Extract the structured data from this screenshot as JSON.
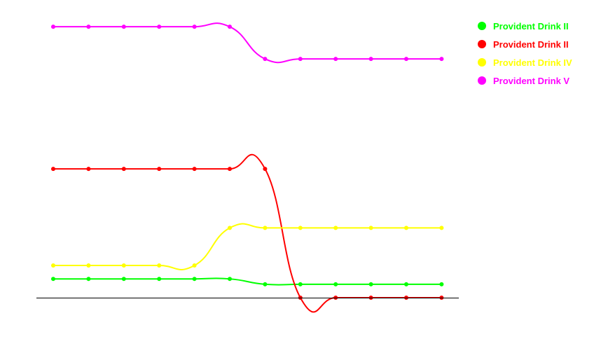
{
  "chart_data": {
    "type": "line",
    "title": "",
    "xlabel": "",
    "ylabel": "",
    "x": [
      1,
      2,
      3,
      4,
      5,
      6,
      7,
      8,
      9,
      10,
      11,
      12
    ],
    "ylim": [
      0,
      100
    ],
    "grid": false,
    "legend_position": "top-right",
    "curve": "smooth",
    "series": [
      {
        "name": "Provident Drink II",
        "color": "#00ff00",
        "values": [
          7,
          7,
          7,
          7,
          7,
          7,
          5,
          5,
          5,
          5,
          5,
          5
        ]
      },
      {
        "name": "Provident Drink II",
        "color": "#ff0000",
        "values": [
          48,
          48,
          48,
          48,
          48,
          48,
          48,
          0,
          0,
          0,
          0,
          0
        ]
      },
      {
        "name": "Provident Drink IV",
        "color": "#ffff00",
        "values": [
          12,
          12,
          12,
          12,
          12,
          26,
          26,
          26,
          26,
          26,
          26,
          26
        ]
      },
      {
        "name": "Provident Drink V",
        "color": "#ff00ff",
        "values": [
          101,
          101,
          101,
          101,
          101,
          101,
          89,
          89,
          89,
          89,
          89,
          89
        ]
      }
    ]
  }
}
